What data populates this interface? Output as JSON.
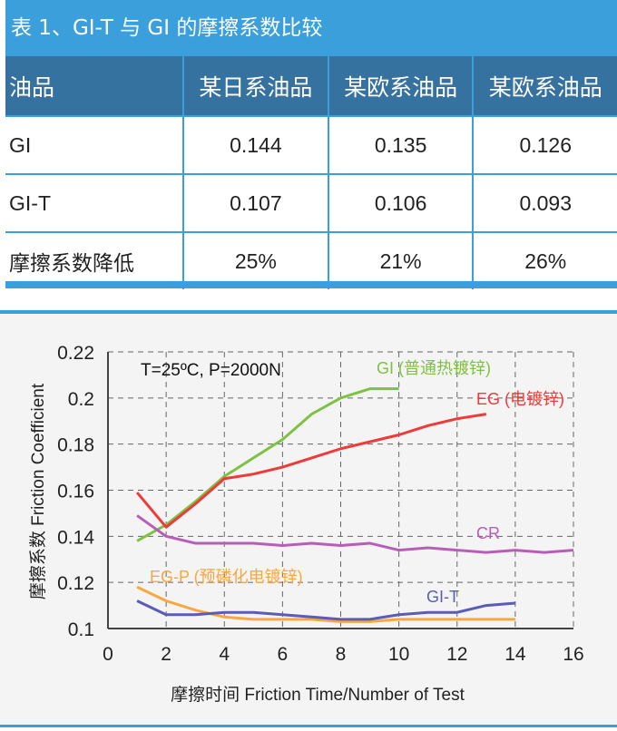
{
  "table": {
    "title": "表 1、GI-T 与 GI 的摩擦系数比较",
    "headers": [
      "油品",
      "某日系油品",
      "某欧系油品",
      "某欧系油品"
    ],
    "rows": [
      [
        "GI",
        "0.144",
        "0.135",
        "0.126"
      ],
      [
        "GI-T",
        "0.107",
        "0.106",
        "0.093"
      ],
      [
        "摩擦系数降低",
        "25%",
        "21%",
        "26%"
      ]
    ],
    "colors": {
      "title_bg": "#3a9fdb",
      "header_bg": "#3672a0"
    }
  },
  "chart_data": {
    "type": "line",
    "annotation": "T=25ºC, P=2000N",
    "xlabel": "摩擦时间  Friction Time/Number of Test",
    "ylabel": "摩擦系数  Friction Coefficient",
    "xlim": [
      0,
      16
    ],
    "ylim": [
      0.1,
      0.22
    ],
    "xticks": [
      "0",
      "2",
      "4",
      "6",
      "8",
      "10",
      "12",
      "14",
      "16"
    ],
    "yticks": [
      "0.1",
      "0.12",
      "0.14",
      "0.16",
      "0.18",
      "0.2",
      "0.22"
    ],
    "grid": true,
    "series": [
      {
        "name": "GI (普通热镀锌)",
        "color": "#7dc242",
        "x": [
          1,
          2,
          3,
          4,
          5,
          6,
          7,
          8,
          9,
          10
        ],
        "values": [
          0.138,
          0.145,
          0.155,
          0.166,
          0.174,
          0.182,
          0.193,
          0.2,
          0.204,
          0.204
        ]
      },
      {
        "name": "EG (电镀锌)",
        "color": "#ee3a38",
        "x": [
          1,
          2,
          3,
          4,
          5,
          6,
          7,
          8,
          9,
          10,
          11,
          12,
          13
        ],
        "values": [
          0.159,
          0.144,
          0.154,
          0.165,
          0.167,
          0.17,
          0.174,
          0.178,
          0.181,
          0.184,
          0.188,
          0.191,
          0.193
        ]
      },
      {
        "name": "CR",
        "color": "#b85db8",
        "x": [
          1,
          2,
          3,
          4,
          5,
          6,
          7,
          8,
          9,
          10,
          11,
          12,
          13,
          14,
          15,
          16
        ],
        "values": [
          0.149,
          0.14,
          0.137,
          0.137,
          0.137,
          0.136,
          0.137,
          0.136,
          0.137,
          0.134,
          0.135,
          0.134,
          0.133,
          0.134,
          0.133,
          0.134
        ]
      },
      {
        "name": "EG-P (预磷化电镀锌)",
        "color": "#f9a73e",
        "x": [
          1,
          2,
          3,
          4,
          5,
          6,
          7,
          8,
          9,
          10,
          11,
          12,
          13,
          14
        ],
        "values": [
          0.118,
          0.112,
          0.108,
          0.105,
          0.104,
          0.104,
          0.104,
          0.103,
          0.103,
          0.104,
          0.104,
          0.104,
          0.104,
          0.104
        ]
      },
      {
        "name": "GI-T",
        "color": "#5b5bb8",
        "x": [
          1,
          2,
          3,
          4,
          5,
          6,
          7,
          8,
          9,
          10,
          11,
          12,
          13,
          14
        ],
        "values": [
          0.112,
          0.106,
          0.106,
          0.107,
          0.107,
          0.106,
          0.105,
          0.104,
          0.104,
          0.106,
          0.107,
          0.107,
          0.11,
          0.111
        ]
      }
    ]
  }
}
